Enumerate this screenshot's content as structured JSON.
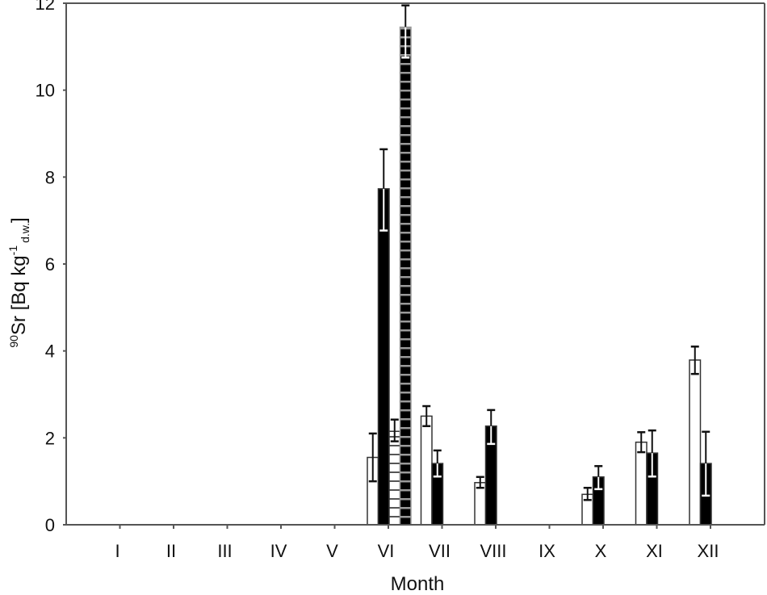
{
  "chart_data": {
    "type": "bar",
    "title": "",
    "xlabel": "Month",
    "ylabel": "90Sr [Bq kg-1 d.w.]",
    "ylabel_parts": {
      "sup": "90",
      "main": "Sr [Bq kg",
      "exp": "-1",
      "sub": "d.w.",
      "close": "]"
    },
    "ylim": [
      0,
      12
    ],
    "yticks": [
      0,
      2,
      4,
      6,
      8,
      10,
      12
    ],
    "grid": false,
    "legend": null,
    "categories": [
      "I",
      "II",
      "III",
      "IV",
      "V",
      "VI",
      "VII",
      "VIII",
      "IX",
      "X",
      "XI",
      "XII"
    ],
    "series": [
      {
        "name": "series-1 (white)",
        "fill": "white",
        "values": [
          null,
          null,
          null,
          null,
          null,
          1.55,
          2.5,
          0.97,
          null,
          0.7,
          1.9,
          3.79
        ],
        "err_high": [
          null,
          null,
          null,
          null,
          null,
          2.1,
          2.73,
          1.1,
          null,
          0.85,
          2.13,
          4.1
        ],
        "err_low": [
          null,
          null,
          null,
          null,
          null,
          1.0,
          2.27,
          0.85,
          null,
          0.57,
          1.67,
          3.47
        ]
      },
      {
        "name": "series-2 (black)",
        "fill": "black",
        "values": [
          null,
          null,
          null,
          null,
          null,
          7.73,
          1.41,
          2.27,
          null,
          1.1,
          1.65,
          1.41
        ],
        "err_high": [
          null,
          null,
          null,
          null,
          null,
          8.64,
          1.71,
          2.64,
          null,
          1.35,
          2.17,
          2.14
        ],
        "err_low": [
          null,
          null,
          null,
          null,
          null,
          6.77,
          1.11,
          1.86,
          null,
          0.82,
          1.11,
          0.67
        ]
      },
      {
        "name": "series-3 (white, horizontal stripes)",
        "fill": "white-striped",
        "values": [
          null,
          null,
          null,
          null,
          null,
          2.15,
          null,
          null,
          null,
          null,
          null,
          null
        ],
        "err_high": [
          null,
          null,
          null,
          null,
          null,
          2.42,
          null,
          null,
          null,
          null,
          null,
          null
        ],
        "err_low": [
          null,
          null,
          null,
          null,
          null,
          1.92,
          null,
          null,
          null,
          null,
          null,
          null
        ]
      },
      {
        "name": "series-4 (black, gray stripes)",
        "fill": "black-striped",
        "values": [
          null,
          null,
          null,
          null,
          null,
          11.45,
          null,
          null,
          null,
          null,
          null,
          null
        ],
        "err_high": [
          null,
          null,
          null,
          null,
          null,
          11.95,
          null,
          null,
          null,
          null,
          null,
          null
        ],
        "err_low": [
          null,
          null,
          null,
          null,
          null,
          10.75,
          null,
          null,
          null,
          null,
          null,
          null
        ]
      }
    ],
    "colors": {
      "axis": "#555555",
      "bar_outline": "#333333",
      "black": "#000000",
      "white": "#ffffff",
      "stripe": "#9a9a9a"
    }
  }
}
